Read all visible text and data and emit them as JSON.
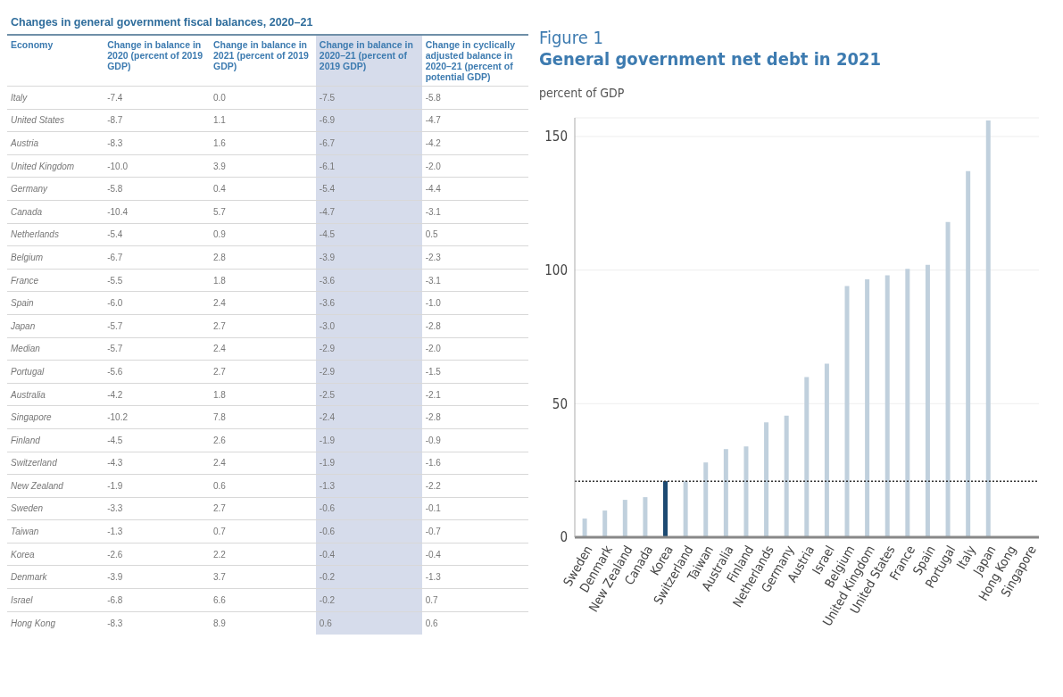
{
  "chart_data": [
    {
      "type": "other",
      "title": "Changes in general government fiscal balances, 2020–21",
      "ylabel": "Economy",
      "categories": [
        "Change in balance in 2020 (percent of 2019 GDP)",
        "Change in balance in 2021 (percent of 2019 GDP)",
        "Change in balance in 2020–21 (percent of 2019 GDP)",
        "Change in cyclically adjusted balance in 2020–21 (percent of potential GDP)"
      ],
      "y_categories": [
        "Italy",
        "United States",
        "Austria",
        "United Kingdom",
        "Germany",
        "Canada",
        "Netherlands",
        "Belgium",
        "France",
        "Spain",
        "Japan",
        "Median",
        "Portugal",
        "Australia",
        "Singapore",
        "Finland",
        "Switzerland",
        "New Zealand",
        "Sweden",
        "Taiwan",
        "Korea",
        "Denmark",
        "Israel",
        "Hong Kong"
      ],
      "cell_labels": [
        [
          "-7.4",
          "0.0",
          "-7.5",
          "-5.8"
        ],
        [
          "-8.7",
          "1.1",
          "-6.9",
          "-4.7"
        ],
        [
          "-8.3",
          "1.6",
          "-6.7",
          "-4.2"
        ],
        [
          "-10.0",
          "3.9",
          "-6.1",
          "-2.0"
        ],
        [
          "-5.8",
          "0.4",
          "-5.4",
          "-4.4"
        ],
        [
          "-10.4",
          "5.7",
          "-4.7",
          "-3.1"
        ],
        [
          "-5.4",
          "0.9",
          "-4.5",
          "0.5"
        ],
        [
          "-6.7",
          "2.8",
          "-3.9",
          "-2.3"
        ],
        [
          "-5.5",
          "1.8",
          "-3.6",
          "-3.1"
        ],
        [
          "-6.0",
          "2.4",
          "-3.6",
          "-1.0"
        ],
        [
          "-5.7",
          "2.7",
          "-3.0",
          "-2.8"
        ],
        [
          "-5.7",
          "2.4",
          "-2.9",
          "-2.0"
        ],
        [
          "-5.6",
          "2.7",
          "-2.9",
          "-1.5"
        ],
        [
          "-4.2",
          "1.8",
          "-2.5",
          "-2.1"
        ],
        [
          "-10.2",
          "7.8",
          "-2.4",
          "-2.8"
        ],
        [
          "-4.5",
          "2.6",
          "-1.9",
          "-0.9"
        ],
        [
          "-4.3",
          "2.4",
          "-1.9",
          "-1.6"
        ],
        [
          "-1.9",
          "0.6",
          "-1.3",
          "-2.2"
        ],
        [
          "-3.3",
          "2.7",
          "-0.6",
          "-0.1"
        ],
        [
          "-1.3",
          "0.7",
          "-0.6",
          "-0.7"
        ],
        [
          "-2.6",
          "2.2",
          "-0.4",
          "-0.4"
        ],
        [
          "-3.9",
          "3.7",
          "-0.2",
          "-1.3"
        ],
        [
          "-6.8",
          "6.6",
          "-0.2",
          "0.7"
        ],
        [
          "-8.3",
          "8.9",
          "0.6",
          "0.6"
        ]
      ]
    },
    {
      "type": "bar",
      "title": "General government net debt in 2021",
      "annotations": [
        "Figure 1"
      ],
      "ylabel": "percent of GDP",
      "categories": [
        "Sweden",
        "Denmark",
        "New Zealand",
        "Canada",
        "Korea",
        "Switzerland",
        "Taiwan",
        "Australia",
        "Finland",
        "Netherlands",
        "Germany",
        "Austria",
        "Israel",
        "Belgium",
        "United Kingdom",
        "United States",
        "France",
        "Spain",
        "Portugal",
        "Italy",
        "Japan",
        "Hong Kong",
        "Singapore"
      ],
      "values": [
        7,
        10,
        14,
        15,
        21,
        21,
        28,
        33,
        34,
        43,
        45.5,
        60,
        65,
        94,
        96.5,
        98,
        100.5,
        102,
        118,
        137,
        156,
        null,
        null
      ],
      "colors": [
        "#c0d0dd",
        "#c0d0dd",
        "#c0d0dd",
        "#c0d0dd",
        "#1d4a72",
        "#c0d0dd",
        "#c0d0dd",
        "#c0d0dd",
        "#c0d0dd",
        "#c0d0dd",
        "#c0d0dd",
        "#c0d0dd",
        "#c0d0dd",
        "#c0d0dd",
        "#c0d0dd",
        "#c0d0dd",
        "#c0d0dd",
        "#c0d0dd",
        "#c0d0dd",
        "#c0d0dd",
        "#c0d0dd",
        "#c0d0dd",
        "#c0d0dd"
      ],
      "ylim": [
        0,
        157
      ],
      "yticks": [
        0,
        50,
        100,
        150
      ],
      "grid": "y",
      "ref_lines": [
        {
          "axis": "y",
          "value": 21,
          "color": "#333333",
          "line_style": "dotted"
        }
      ]
    }
  ]
}
